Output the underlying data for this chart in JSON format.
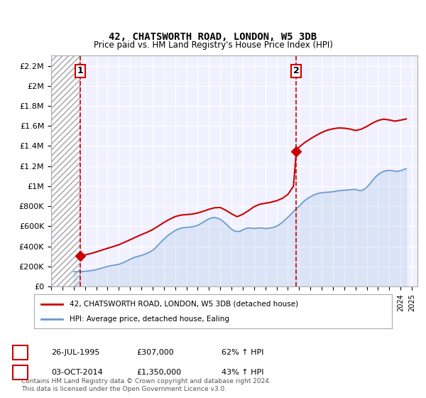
{
  "title": "42, CHATSWORTH ROAD, LONDON, W5 3DB",
  "subtitle": "Price paid vs. HM Land Registry's House Price Index (HPI)",
  "legend_line1": "42, CHATSWORTH ROAD, LONDON, W5 3DB (detached house)",
  "legend_line2": "HPI: Average price, detached house, Ealing",
  "footnote": "Contains HM Land Registry data © Crown copyright and database right 2024.\nThis data is licensed under the Open Government Licence v3.0.",
  "sale1_label": "1",
  "sale1_date_str": "26-JUL-1995",
  "sale1_price_str": "£307,000",
  "sale1_pct_str": "62% ↑ HPI",
  "sale1_date_num": 1995.57,
  "sale1_price": 307000,
  "sale2_label": "2",
  "sale2_date_str": "03-OCT-2014",
  "sale2_price_str": "£1,350,000",
  "sale2_pct_str": "43% ↑ HPI",
  "sale2_date_num": 2014.75,
  "sale2_price": 1350000,
  "xlim": [
    1993.0,
    2025.5
  ],
  "ylim": [
    0,
    2300000
  ],
  "yticks": [
    0,
    200000,
    400000,
    600000,
    800000,
    1000000,
    1200000,
    1400000,
    1600000,
    1800000,
    2000000,
    2200000
  ],
  "ytick_labels": [
    "£0",
    "£200K",
    "£400K",
    "£600K",
    "£800K",
    "£1M",
    "£1.2M",
    "£1.4M",
    "£1.6M",
    "£1.8M",
    "£2M",
    "£2.2M"
  ],
  "hatch_xlim_end": 1995.57,
  "red_color": "#cc0000",
  "blue_color": "#6699cc",
  "dashed_color": "#cc0000",
  "background_color": "#f0f0ff",
  "grid_color": "#ffffff",
  "hpi_data_x": [
    1995.0,
    1995.25,
    1995.5,
    1995.75,
    1996.0,
    1996.25,
    1996.5,
    1996.75,
    1997.0,
    1997.25,
    1997.5,
    1997.75,
    1998.0,
    1998.25,
    1998.5,
    1998.75,
    1999.0,
    1999.25,
    1999.5,
    1999.75,
    2000.0,
    2000.25,
    2000.5,
    2000.75,
    2001.0,
    2001.25,
    2001.5,
    2001.75,
    2002.0,
    2002.25,
    2002.5,
    2002.75,
    2003.0,
    2003.25,
    2003.5,
    2003.75,
    2004.0,
    2004.25,
    2004.5,
    2004.75,
    2005.0,
    2005.25,
    2005.5,
    2005.75,
    2006.0,
    2006.25,
    2006.5,
    2006.75,
    2007.0,
    2007.25,
    2007.5,
    2007.75,
    2008.0,
    2008.25,
    2008.5,
    2008.75,
    2009.0,
    2009.25,
    2009.5,
    2009.75,
    2010.0,
    2010.25,
    2010.5,
    2010.75,
    2011.0,
    2011.25,
    2011.5,
    2011.75,
    2012.0,
    2012.25,
    2012.5,
    2012.75,
    2013.0,
    2013.25,
    2013.5,
    2013.75,
    2014.0,
    2014.25,
    2014.5,
    2014.75,
    2015.0,
    2015.25,
    2015.5,
    2015.75,
    2016.0,
    2016.25,
    2016.5,
    2016.75,
    2017.0,
    2017.25,
    2017.5,
    2017.75,
    2018.0,
    2018.25,
    2018.5,
    2018.75,
    2019.0,
    2019.25,
    2019.5,
    2019.75,
    2020.0,
    2020.25,
    2020.5,
    2020.75,
    2021.0,
    2021.25,
    2021.5,
    2021.75,
    2022.0,
    2022.25,
    2022.5,
    2022.75,
    2023.0,
    2023.25,
    2023.5,
    2023.75,
    2024.0,
    2024.25,
    2024.5
  ],
  "hpi_data_y": [
    148000,
    148500,
    149000,
    150000,
    152000,
    155000,
    158000,
    162000,
    168000,
    176000,
    185000,
    193000,
    200000,
    207000,
    212000,
    216000,
    222000,
    232000,
    244000,
    258000,
    272000,
    285000,
    295000,
    303000,
    310000,
    320000,
    332000,
    345000,
    362000,
    385000,
    415000,
    445000,
    472000,
    498000,
    520000,
    540000,
    558000,
    572000,
    582000,
    588000,
    590000,
    592000,
    596000,
    602000,
    610000,
    625000,
    643000,
    660000,
    675000,
    685000,
    688000,
    682000,
    670000,
    650000,
    625000,
    598000,
    572000,
    555000,
    548000,
    552000,
    565000,
    578000,
    585000,
    582000,
    578000,
    582000,
    585000,
    582000,
    578000,
    580000,
    585000,
    592000,
    602000,
    618000,
    640000,
    665000,
    690000,
    718000,
    748000,
    775000,
    800000,
    830000,
    858000,
    878000,
    895000,
    910000,
    922000,
    930000,
    935000,
    938000,
    940000,
    942000,
    945000,
    950000,
    955000,
    958000,
    960000,
    962000,
    965000,
    968000,
    968000,
    960000,
    955000,
    968000,
    990000,
    1020000,
    1055000,
    1088000,
    1115000,
    1135000,
    1148000,
    1155000,
    1158000,
    1155000,
    1150000,
    1148000,
    1155000,
    1165000,
    1175000
  ],
  "price_data_x": [
    1995.57,
    2014.75
  ],
  "price_data_y": [
    307000,
    1350000
  ],
  "red_line_x": [
    1995.57,
    1996.0,
    1996.5,
    1997.0,
    1997.5,
    1998.0,
    1998.5,
    1999.0,
    1999.5,
    2000.0,
    2000.5,
    2001.0,
    2001.5,
    2002.0,
    2002.5,
    2003.0,
    2003.5,
    2004.0,
    2004.5,
    2005.0,
    2005.5,
    2006.0,
    2006.5,
    2007.0,
    2007.5,
    2008.0,
    2008.5,
    2009.0,
    2009.5,
    2010.0,
    2010.5,
    2011.0,
    2011.5,
    2012.0,
    2012.5,
    2013.0,
    2013.5,
    2014.0,
    2014.5,
    2014.75
  ],
  "red_line_y": [
    307000,
    316000,
    328000,
    345000,
    363000,
    381000,
    398000,
    416000,
    441000,
    466000,
    492000,
    517000,
    540000,
    567000,
    602000,
    638000,
    670000,
    697000,
    712000,
    717000,
    722000,
    733000,
    750000,
    770000,
    785000,
    788000,
    760000,
    725000,
    696000,
    720000,
    756000,
    795000,
    820000,
    830000,
    840000,
    855000,
    878000,
    918000,
    1000000,
    1350000
  ],
  "red_line_after_x": [
    2014.75,
    2015.0,
    2015.5,
    2016.0,
    2016.5,
    2017.0,
    2017.5,
    2018.0,
    2018.5,
    2019.0,
    2019.5,
    2020.0,
    2020.5,
    2021.0,
    2021.5,
    2022.0,
    2022.5,
    2023.0,
    2023.5,
    2024.0,
    2024.5
  ],
  "red_line_after_y": [
    1350000,
    1390000,
    1435000,
    1472000,
    1505000,
    1535000,
    1558000,
    1572000,
    1580000,
    1578000,
    1570000,
    1555000,
    1568000,
    1595000,
    1628000,
    1655000,
    1668000,
    1660000,
    1648000,
    1658000,
    1670000
  ]
}
